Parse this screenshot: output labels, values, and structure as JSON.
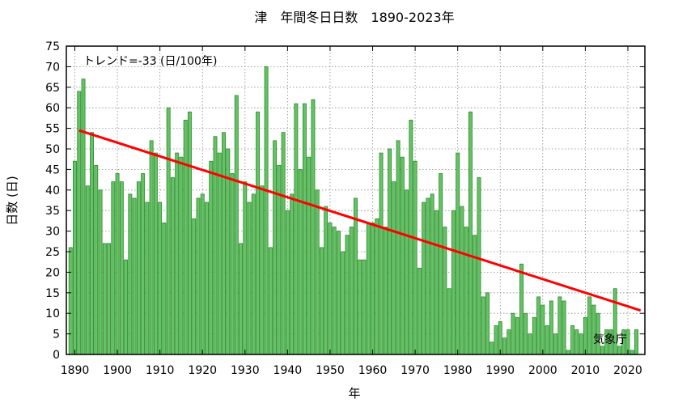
{
  "chart_data": {
    "type": "bar",
    "title": "津　年間冬日日数　1890-2023年",
    "xlabel": "年",
    "ylabel": "日数 (日)",
    "trend_label": "トレンド=-33 (日/100年)",
    "source_label": "気象庁",
    "x_start": 1889,
    "x_ticks": [
      1890,
      1900,
      1910,
      1920,
      1930,
      1940,
      1950,
      1960,
      1970,
      1980,
      1990,
      2000,
      2010,
      2020
    ],
    "y_ticks": [
      0,
      5,
      10,
      15,
      20,
      25,
      30,
      35,
      40,
      45,
      50,
      55,
      60,
      65,
      70,
      75
    ],
    "xlim": [
      1888,
      2024
    ],
    "ylim": [
      0,
      75
    ],
    "grid": true,
    "colors": {
      "bar_fill": "#66c266",
      "bar_stroke": "#2a8a2a",
      "trend": "#ff0000"
    },
    "trend_line": {
      "x": [
        1891,
        2023
      ],
      "y": [
        54.5,
        10.7
      ]
    },
    "values": [
      26,
      47,
      64,
      67,
      41,
      54,
      46,
      40,
      27,
      27,
      42,
      44,
      42,
      23,
      39,
      38,
      42,
      44,
      37,
      52,
      49,
      37,
      32,
      60,
      43,
      49,
      48,
      57,
      59,
      33,
      38,
      39,
      37,
      47,
      53,
      49,
      54,
      50,
      44,
      63,
      27,
      42,
      37,
      39,
      59,
      41,
      70,
      26,
      52,
      46,
      54,
      35,
      39,
      61,
      45,
      61,
      48,
      62,
      40,
      26,
      36,
      32,
      31,
      30,
      25,
      29,
      31,
      38,
      23,
      23,
      32,
      32,
      33,
      49,
      31,
      50,
      42,
      52,
      48,
      40,
      57,
      47,
      21,
      37,
      38,
      39,
      35,
      44,
      31,
      16,
      35,
      49,
      36,
      31,
      59,
      29,
      43,
      14,
      15,
      3,
      7,
      8,
      4,
      6,
      10,
      9,
      22,
      10,
      5,
      9,
      14,
      12,
      7,
      13,
      5,
      14,
      13,
      1,
      7,
      6,
      5,
      9,
      14,
      12,
      10,
      2,
      6,
      6,
      16,
      2,
      6,
      6,
      1,
      6
    ]
  }
}
